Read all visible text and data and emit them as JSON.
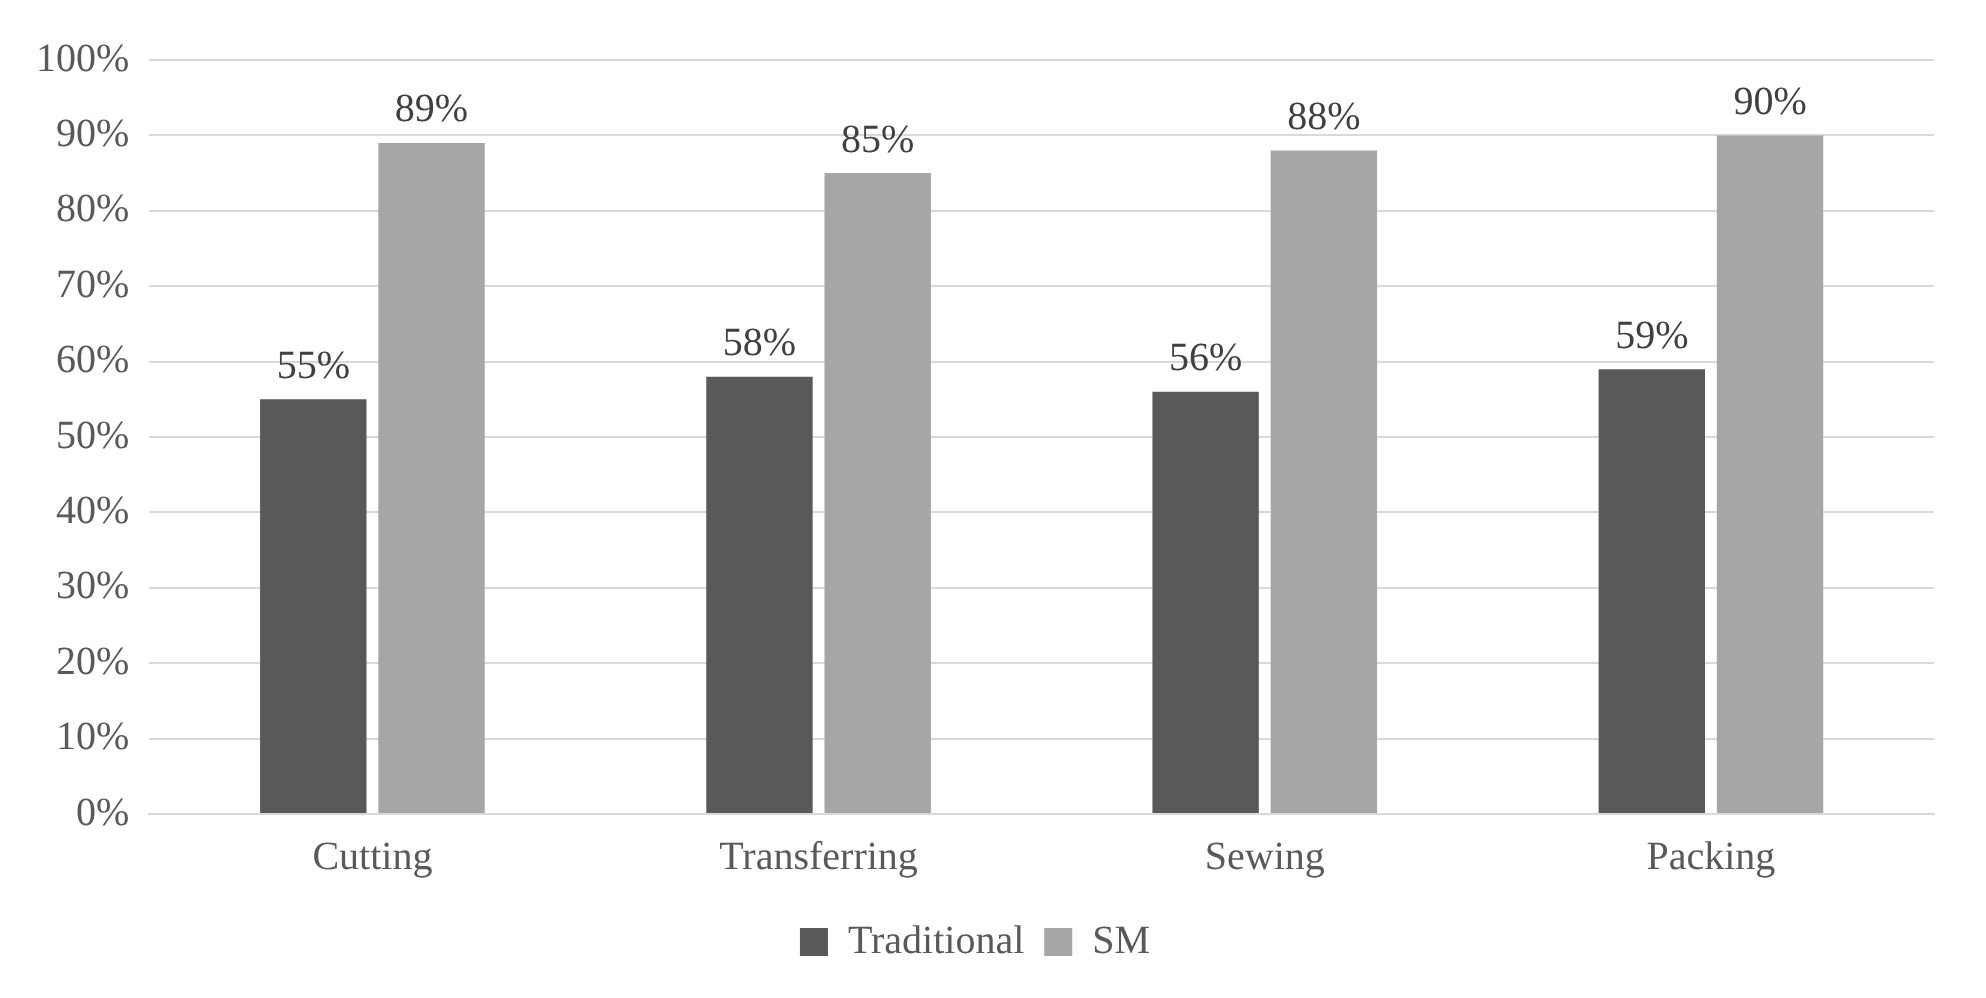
{
  "chart_data": {
    "type": "bar",
    "categories": [
      "Cutting",
      "Transferring",
      "Sewing",
      "Packing"
    ],
    "series": [
      {
        "name": "Traditional",
        "color": "#595959",
        "values": [
          55,
          58,
          56,
          59
        ],
        "value_labels": [
          "55%",
          "58%",
          "56%",
          "59%"
        ]
      },
      {
        "name": "SM",
        "color": "#a6a6a6",
        "values": [
          89,
          85,
          88,
          90
        ],
        "value_labels": [
          "89%",
          "85%",
          "88%",
          "90%"
        ]
      }
    ],
    "ylim": [
      0,
      100
    ],
    "yticks": [
      {
        "value": 0,
        "label": "0%"
      },
      {
        "value": 10,
        "label": "10%"
      },
      {
        "value": 20,
        "label": "20%"
      },
      {
        "value": 30,
        "label": "30%"
      },
      {
        "value": 40,
        "label": "40%"
      },
      {
        "value": 50,
        "label": "50%"
      },
      {
        "value": 60,
        "label": "60%"
      },
      {
        "value": 70,
        "label": "70%"
      },
      {
        "value": 80,
        "label": "80%"
      },
      {
        "value": 90,
        "label": "90%"
      },
      {
        "value": 100,
        "label": "100%"
      }
    ],
    "grid": "y",
    "legend": "bottom"
  }
}
